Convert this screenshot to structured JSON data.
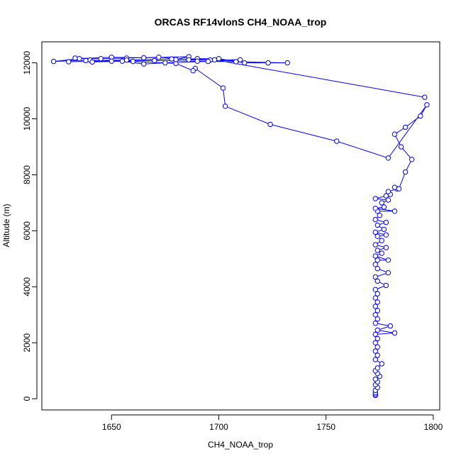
{
  "chart_data": {
    "type": "line",
    "title": "ORCAS RF14vlonS CH4_NOAA_trop",
    "xlabel": "CH4_NOAA_trop",
    "ylabel": "Altitude (m)",
    "xlim": [
      1617.5,
      1803
    ],
    "ylim": [
      -400,
      12750
    ],
    "xticks": [
      1650,
      1700,
      1750,
      1800
    ],
    "yticks": [
      0,
      2000,
      4000,
      6000,
      8000,
      10000,
      12000
    ],
    "grid": false,
    "color": "#0000ff",
    "markers": "open-circle",
    "series": [
      {
        "values": [
          [
            1773,
            120
          ],
          [
            1773,
            160
          ],
          [
            1773,
            220
          ],
          [
            1773,
            300
          ],
          [
            1774,
            400
          ],
          [
            1773,
            500
          ],
          [
            1774,
            600
          ],
          [
            1773,
            700
          ],
          [
            1775,
            800
          ],
          [
            1774,
            900
          ],
          [
            1773,
            1000
          ],
          [
            1774,
            1100
          ],
          [
            1776,
            1250
          ],
          [
            1773,
            1400
          ],
          [
            1774,
            1550
          ],
          [
            1773,
            1700
          ],
          [
            1774,
            1850
          ],
          [
            1773,
            2000
          ],
          [
            1774,
            2150
          ],
          [
            1773,
            2300
          ],
          [
            1782,
            2350
          ],
          [
            1774,
            2450
          ],
          [
            1780,
            2600
          ],
          [
            1773,
            2700
          ],
          [
            1774,
            2850
          ],
          [
            1773,
            3000
          ],
          [
            1774,
            3150
          ],
          [
            1773,
            3300
          ],
          [
            1774,
            3450
          ],
          [
            1773,
            3600
          ],
          [
            1774,
            3750
          ],
          [
            1773,
            3900
          ],
          [
            1778,
            4050
          ],
          [
            1774,
            4200
          ],
          [
            1773,
            4350
          ],
          [
            1779,
            4500
          ],
          [
            1774,
            4650
          ],
          [
            1773,
            4800
          ],
          [
            1774,
            4950
          ],
          [
            1779,
            4950
          ],
          [
            1773,
            5100
          ],
          [
            1776,
            5200
          ],
          [
            1774,
            5300
          ],
          [
            1778,
            5400
          ],
          [
            1773,
            5500
          ],
          [
            1776,
            5650
          ],
          [
            1774,
            5800
          ],
          [
            1778,
            5850
          ],
          [
            1773,
            5950
          ],
          [
            1777,
            6050
          ],
          [
            1774,
            6200
          ],
          [
            1778,
            6300
          ],
          [
            1773,
            6400
          ],
          [
            1775,
            6550
          ],
          [
            1774,
            6700
          ],
          [
            1782,
            6700
          ],
          [
            1773,
            6800
          ],
          [
            1777,
            6850
          ],
          [
            1776,
            7000
          ],
          [
            1779,
            7100
          ],
          [
            1773,
            7150
          ],
          [
            1778,
            7250
          ],
          [
            1780,
            7300
          ],
          [
            1779,
            7400
          ],
          [
            1783,
            7500
          ],
          [
            1782,
            7550
          ],
          [
            1784,
            7500
          ],
          [
            1787,
            8100
          ],
          [
            1790,
            8550
          ],
          [
            1785,
            9000
          ],
          [
            1782,
            9450
          ],
          [
            1787,
            9700
          ],
          [
            1794,
            10100
          ],
          [
            1797,
            10500
          ],
          [
            1779,
            8600
          ],
          [
            1755,
            9200
          ],
          [
            1724,
            9800
          ],
          [
            1703,
            10450
          ],
          [
            1702,
            11100
          ],
          [
            1689,
            11800
          ],
          [
            1688,
            11720
          ],
          [
            1680,
            11980
          ],
          [
            1660,
            12050
          ],
          [
            1640,
            12100
          ],
          [
            1623,
            12050
          ],
          [
            1635,
            12150
          ],
          [
            1650,
            12200
          ],
          [
            1665,
            12180
          ],
          [
            1686,
            12220
          ],
          [
            1680,
            12120
          ],
          [
            1690,
            12150
          ],
          [
            1700,
            12150
          ],
          [
            1712,
            12000
          ],
          [
            1723,
            12000
          ],
          [
            1732,
            12000
          ],
          [
            1708,
            12040
          ],
          [
            1690,
            12060
          ],
          [
            1670,
            12080
          ],
          [
            1650,
            12060
          ],
          [
            1630,
            12040
          ],
          [
            1633,
            12170
          ],
          [
            1645,
            12150
          ],
          [
            1657,
            12170
          ],
          [
            1672,
            12200
          ],
          [
            1686,
            12110
          ],
          [
            1696,
            12100
          ],
          [
            1710,
            12110
          ],
          [
            1695,
            12050
          ],
          [
            1675,
            12000
          ],
          [
            1665,
            11960
          ],
          [
            1655,
            12060
          ],
          [
            1641,
            12030
          ],
          [
            1638,
            12080
          ],
          [
            1657,
            12100
          ],
          [
            1678,
            12140
          ],
          [
            1698,
            12110
          ],
          [
            1796,
            10770
          ]
        ]
      }
    ]
  }
}
